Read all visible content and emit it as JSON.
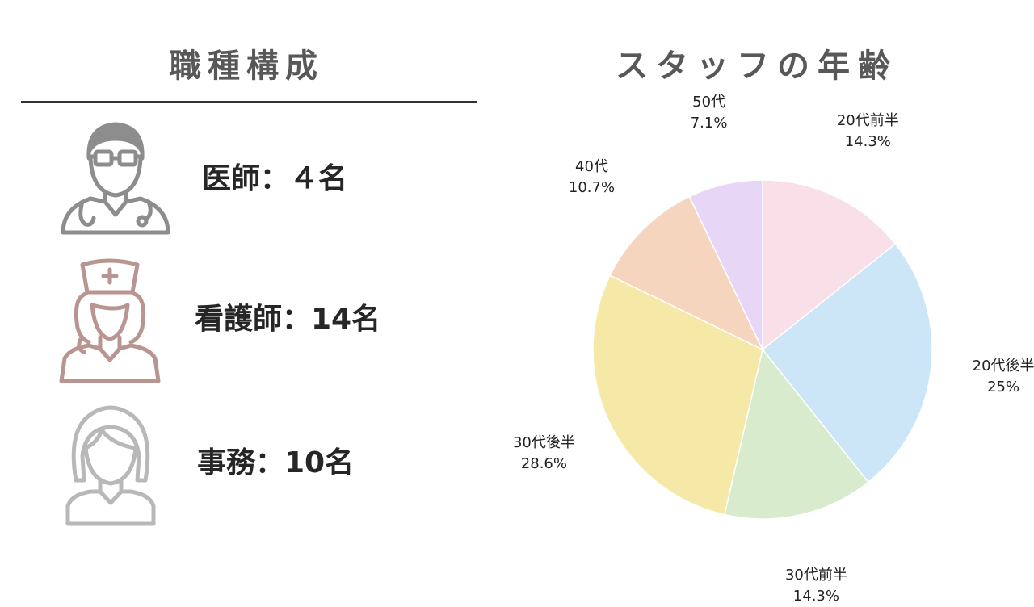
{
  "composition": {
    "title": "職種構成",
    "items": [
      {
        "icon": "doctor-icon",
        "text": "医師：４名",
        "color": "#8d8d8d"
      },
      {
        "icon": "nurse-icon",
        "text": "看護師：14名",
        "color": "#b99591"
      },
      {
        "icon": "clerk-icon",
        "text": "事務：10名",
        "color": "#b8b8b8"
      }
    ]
  },
  "chart_data": {
    "type": "pie",
    "title": "スタッフの年齢",
    "slices": [
      {
        "label": "20代前半",
        "value": 14.3,
        "display": "14.3%",
        "color": "#f9dfe8"
      },
      {
        "label": "20代後半",
        "value": 25,
        "display": "25%",
        "color": "#cde6f7"
      },
      {
        "label": "30代前半",
        "value": 14.3,
        "display": "14.3%",
        "color": "#d8ebcd"
      },
      {
        "label": "30代後半",
        "value": 28.6,
        "display": "28.6%",
        "color": "#f6e9a8"
      },
      {
        "label": "40代",
        "value": 10.7,
        "display": "10.7%",
        "color": "#f6d5bf"
      },
      {
        "label": "50代",
        "value": 7.1,
        "display": "7.1%",
        "color": "#e8d6f7"
      }
    ]
  }
}
